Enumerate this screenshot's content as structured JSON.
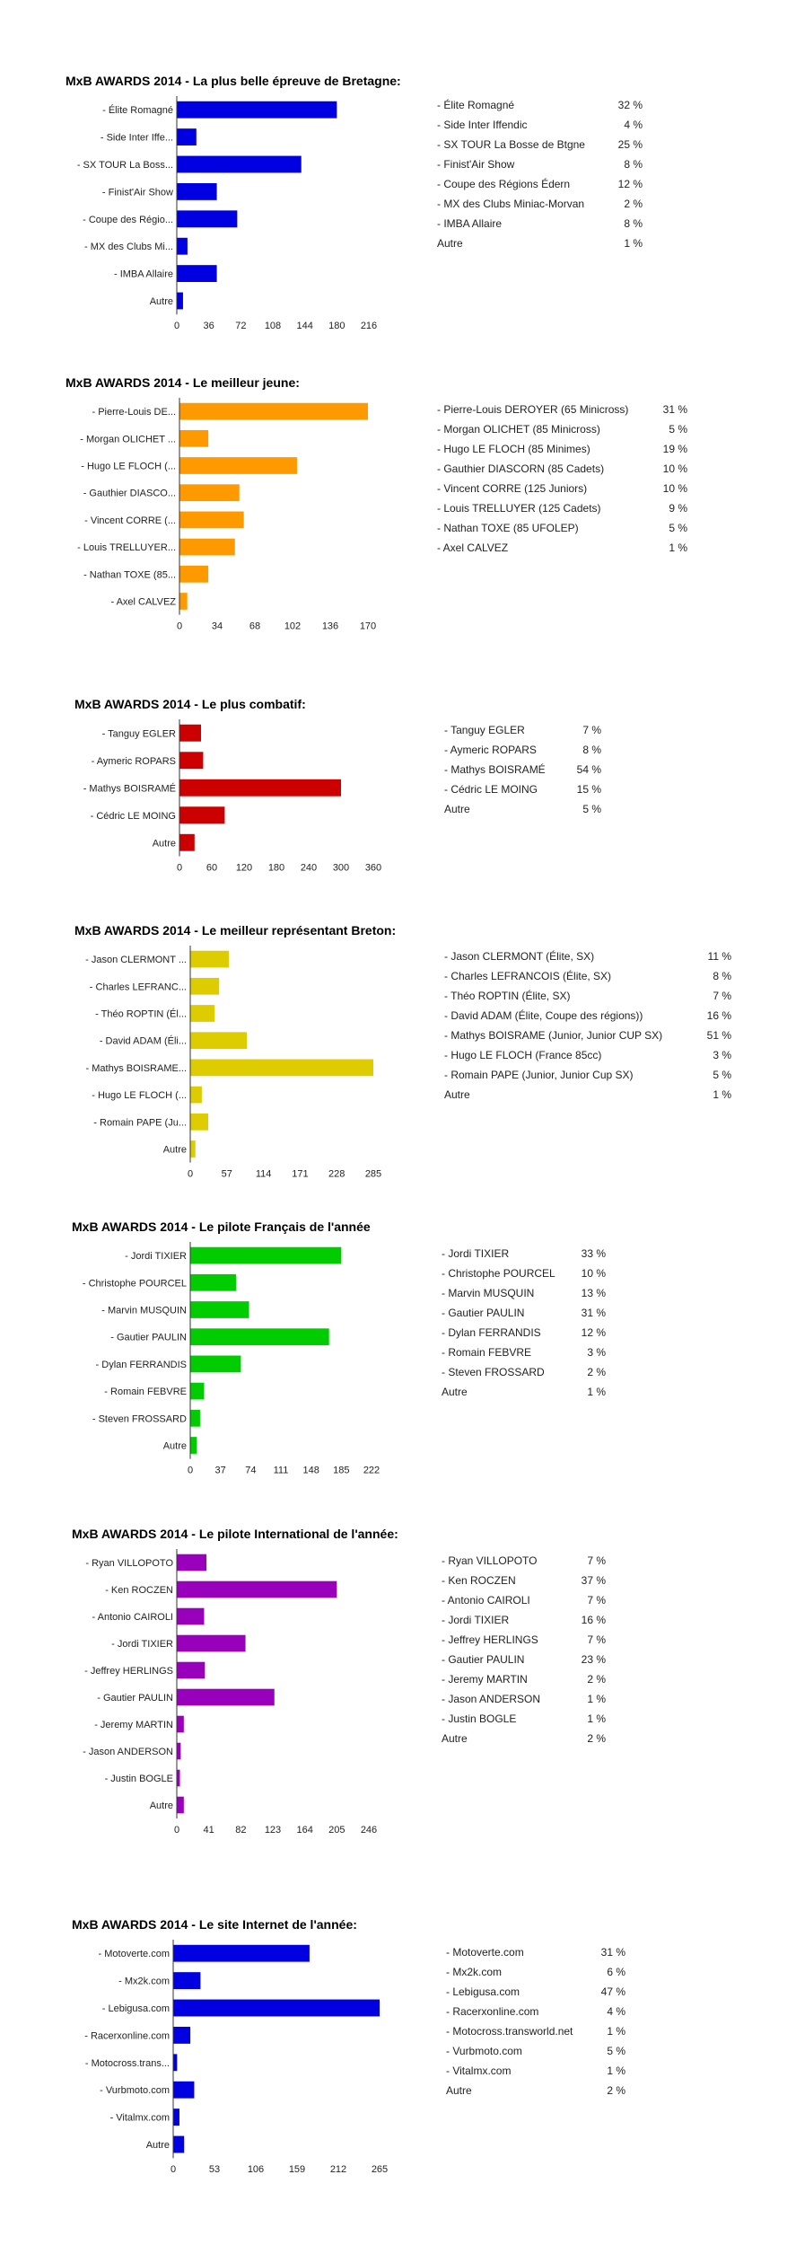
{
  "chart_data": [
    {
      "type": "bar",
      "orientation": "horizontal",
      "title": "MxB AWARDS 2014 - La plus belle épreuve de Bretagne:",
      "color": "#0000e0",
      "categories": [
        "- Élite Romagné",
        "- Side Inter Iffe...",
        "- SX TOUR La Boss...",
        "- Finist'Air Show",
        "- Coupe des Régio...",
        "- MX des Clubs Mi...",
        "- IMBA Allaire",
        "Autre"
      ],
      "values": [
        180,
        22,
        140,
        45,
        68,
        12,
        45,
        7
      ],
      "xticks": [
        "0",
        "36",
        "72",
        "108",
        "144",
        "180",
        "216"
      ],
      "xlim": [
        0,
        216
      ],
      "legend_items": [
        {
          "label": "- Élite Romagné",
          "pct": "32 %"
        },
        {
          "label": "- Side Inter Iffendic",
          "pct": "4 %"
        },
        {
          "label": "- SX TOUR La Bosse de Btgne",
          "pct": "25 %"
        },
        {
          "label": "- Finist'Air Show",
          "pct": "8 %"
        },
        {
          "label": "- Coupe des Régions Édern",
          "pct": "12 %"
        },
        {
          "label": "- MX des Clubs Miniac-Morvan",
          "pct": "2 %"
        },
        {
          "label": "- IMBA Allaire",
          "pct": "8 %"
        },
        {
          "label": "Autre",
          "pct": "1 %"
        }
      ]
    },
    {
      "type": "bar",
      "orientation": "horizontal",
      "title": "MxB AWARDS 2014 - Le meilleur jeune:",
      "color": "#ff9900",
      "categories": [
        "- Pierre-Louis DE...",
        "- Morgan OLICHET ...",
        "- Hugo LE FLOCH (...",
        "- Gauthier DIASCO...",
        "- Vincent CORRE (...",
        "- Louis TRELLUYER...",
        "- Nathan TOXE (85...",
        "- Axel CALVEZ"
      ],
      "values": [
        170,
        26,
        106,
        54,
        58,
        50,
        26,
        7
      ],
      "xticks": [
        "0",
        "34",
        "68",
        "102",
        "136",
        "170"
      ],
      "xlim": [
        0,
        170
      ],
      "legend_items": [
        {
          "label": "- Pierre-Louis DEROYER (65 Minicross)",
          "pct": "31 %"
        },
        {
          "label": "- Morgan OLICHET (85 Minicross)",
          "pct": "5 %"
        },
        {
          "label": "- Hugo LE FLOCH (85 Minimes)",
          "pct": "19 %"
        },
        {
          "label": "- Gauthier DIASCORN (85 Cadets)",
          "pct": "10 %"
        },
        {
          "label": "- Vincent CORRE (125 Juniors)",
          "pct": "10 %"
        },
        {
          "label": "- Louis TRELLUYER (125 Cadets)",
          "pct": "9 %"
        },
        {
          "label": "- Nathan TOXE (85 UFOLEP)",
          "pct": "5 %"
        },
        {
          "label": "- Axel CALVEZ",
          "pct": "1 %"
        }
      ]
    },
    {
      "type": "bar",
      "orientation": "horizontal",
      "title": "MxB AWARDS 2014 - Le plus combatif:",
      "color": "#cc0000",
      "categories": [
        "- Tanguy EGLER",
        "- Aymeric ROPARS",
        "- Mathys BOISRAMÉ",
        "- Cédric LE MOING",
        "Autre"
      ],
      "values": [
        40,
        44,
        300,
        84,
        28
      ],
      "xticks": [
        "0",
        "60",
        "120",
        "180",
        "240",
        "300",
        "360"
      ],
      "xlim": [
        0,
        360
      ],
      "legend_items": [
        {
          "label": "- Tanguy EGLER",
          "pct": "7 %"
        },
        {
          "label": "- Aymeric ROPARS",
          "pct": "8 %"
        },
        {
          "label": "- Mathys BOISRAMÉ",
          "pct": "54 %"
        },
        {
          "label": "- Cédric LE MOING",
          "pct": "15 %"
        },
        {
          "label": "Autre",
          "pct": "5 %"
        }
      ]
    },
    {
      "type": "bar",
      "orientation": "horizontal",
      "title": "MxB AWARDS 2014 - Le meilleur représentant Breton:",
      "color": "#ddcc00",
      "categories": [
        "- Jason CLERMONT ...",
        "- Charles LEFRANC...",
        "- Théo ROPTIN (Él...",
        "- David ADAM (Éli...",
        "- Mathys BOISRAME...",
        "- Hugo LE FLOCH (...",
        "- Romain PAPE (Ju...",
        "Autre"
      ],
      "values": [
        60,
        45,
        38,
        88,
        285,
        18,
        28,
        8
      ],
      "xticks": [
        "0",
        "57",
        "114",
        "171",
        "228",
        "285"
      ],
      "xlim": [
        0,
        285
      ],
      "legend_items": [
        {
          "label": "- Jason CLERMONT (Élite, SX)",
          "pct": "11 %"
        },
        {
          "label": "- Charles LEFRANCOIS (Élite, SX)",
          "pct": "8 %"
        },
        {
          "label": "- Théo ROPTIN (Élite, SX)",
          "pct": "7 %"
        },
        {
          "label": "- David ADAM (Élite, Coupe des régions))",
          "pct": "16 %"
        },
        {
          "label": "- Mathys BOISRAME (Junior, Junior CUP SX)",
          "pct": "51 %"
        },
        {
          "label": "- Hugo LE FLOCH (France 85cc)",
          "pct": "3 %"
        },
        {
          "label": "- Romain PAPE (Junior, Junior Cup SX)",
          "pct": "5 %"
        },
        {
          "label": "Autre",
          "pct": "1 %"
        }
      ]
    },
    {
      "type": "bar",
      "orientation": "horizontal",
      "title": "MxB AWARDS 2014 - Le pilote Français de l'année",
      "color": "#00cc00",
      "categories": [
        "- Jordi TIXIER",
        "- Christophe POURCEL",
        "- Marvin MUSQUIN",
        "- Gautier PAULIN",
        "- Dylan FERRANDIS",
        "- Romain FEBVRE",
        "- Steven FROSSARD",
        "Autre"
      ],
      "values": [
        185,
        56,
        72,
        170,
        62,
        17,
        12,
        8
      ],
      "xticks": [
        "0",
        "37",
        "74",
        "111",
        "148",
        "185",
        "222"
      ],
      "xlim": [
        0,
        222
      ],
      "legend_items": [
        {
          "label": "- Jordi TIXIER",
          "pct": "33 %"
        },
        {
          "label": "- Christophe POURCEL",
          "pct": "10 %"
        },
        {
          "label": "- Marvin MUSQUIN",
          "pct": "13 %"
        },
        {
          "label": "- Gautier PAULIN",
          "pct": "31 %"
        },
        {
          "label": "- Dylan FERRANDIS",
          "pct": "12 %"
        },
        {
          "label": "- Romain FEBVRE",
          "pct": "3 %"
        },
        {
          "label": "- Steven FROSSARD",
          "pct": "2 %"
        },
        {
          "label": "Autre",
          "pct": "1 %"
        }
      ]
    },
    {
      "type": "bar",
      "orientation": "horizontal",
      "title": "MxB AWARDS 2014 - Le pilote International de l'année:",
      "color": "#9900bb",
      "categories": [
        "- Ryan VILLOPOTO",
        "- Ken ROCZEN",
        "- Antonio CAIROLI",
        "- Jordi TIXIER",
        "- Jeffrey HERLINGS",
        "- Gautier PAULIN",
        "- Jeremy MARTIN",
        "- Jason ANDERSON",
        "- Justin BOGLE",
        "Autre"
      ],
      "values": [
        38,
        205,
        35,
        88,
        36,
        125,
        9,
        5,
        4,
        9
      ],
      "xticks": [
        "0",
        "41",
        "82",
        "123",
        "164",
        "205",
        "246"
      ],
      "xlim": [
        0,
        246
      ],
      "legend_items": [
        {
          "label": "- Ryan VILLOPOTO",
          "pct": "7 %"
        },
        {
          "label": "- Ken ROCZEN",
          "pct": "37 %"
        },
        {
          "label": "- Antonio CAIROLI",
          "pct": "7 %"
        },
        {
          "label": "- Jordi TIXIER",
          "pct": "16 %"
        },
        {
          "label": "- Jeffrey HERLINGS",
          "pct": "7 %"
        },
        {
          "label": "- Gautier PAULIN",
          "pct": "23 %"
        },
        {
          "label": "- Jeremy MARTIN",
          "pct": "2 %"
        },
        {
          "label": "- Jason ANDERSON",
          "pct": "1 %"
        },
        {
          "label": "- Justin BOGLE",
          "pct": "1 %"
        },
        {
          "label": "Autre",
          "pct": "2 %"
        }
      ]
    },
    {
      "type": "bar",
      "orientation": "horizontal",
      "title": "MxB AWARDS 2014 - Le site Internet de l'année:",
      "color": "#0000e0",
      "categories": [
        "- Motoverte.com",
        "- Mx2k.com",
        "- Lebigusa.com",
        "- Racerxonline.com",
        "- Motocross.trans...",
        "- Vurbmoto.com",
        "- Vitalmx.com",
        "Autre"
      ],
      "values": [
        175,
        35,
        265,
        22,
        5,
        27,
        8,
        14
      ],
      "xticks": [
        "0",
        "53",
        "106",
        "159",
        "212",
        "265"
      ],
      "xlim": [
        0,
        265
      ],
      "legend_items": [
        {
          "label": "- Motoverte.com",
          "pct": "31 %"
        },
        {
          "label": "- Mx2k.com",
          "pct": "6 %"
        },
        {
          "label": "- Lebigusa.com",
          "pct": "47 %"
        },
        {
          "label": "- Racerxonline.com",
          "pct": "4 %"
        },
        {
          "label": "- Motocross.transworld.net",
          "pct": "1 %"
        },
        {
          "label": "- Vurbmoto.com",
          "pct": "5 %"
        },
        {
          "label": "- Vitalmx.com",
          "pct": "1 %"
        },
        {
          "label": "Autre",
          "pct": "2 %"
        }
      ]
    }
  ]
}
